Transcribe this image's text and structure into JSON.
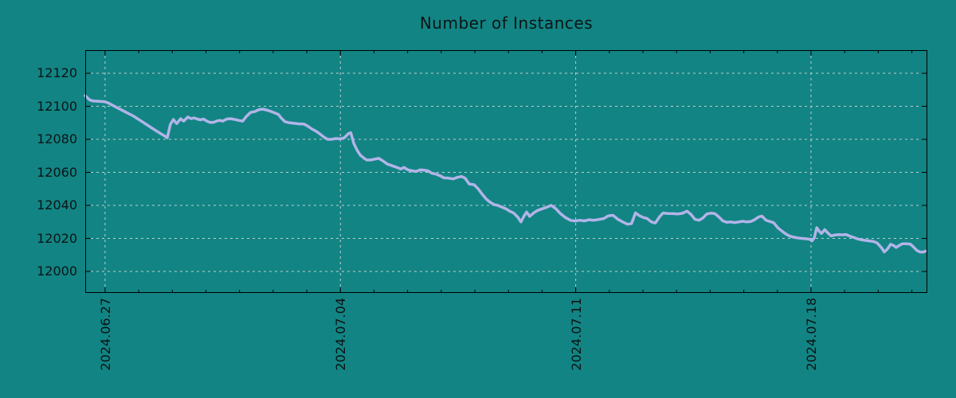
{
  "chart": {
    "background_color": "#128484",
    "line_color": "#b2b4e8",
    "grid_color": "#c2cece",
    "axis_color": "#000000",
    "text_color": "#0b1414"
  },
  "chart_data": {
    "type": "line",
    "title": "Number of Instances",
    "xlabel": "",
    "ylabel": "",
    "x_unit": "days since first sample (~2024.06.26 10:00)",
    "xlim": [
      0,
      25.05
    ],
    "ylim": [
      11987,
      12134
    ],
    "y_ticks": [
      12000,
      12020,
      12040,
      12060,
      12080,
      12100,
      12120
    ],
    "x_ticks_major": [
      {
        "day": 0.59,
        "label": "2024.06.27"
      },
      {
        "day": 7.59,
        "label": "2024.07.04"
      },
      {
        "day": 14.59,
        "label": "2024.07.11"
      },
      {
        "day": 21.59,
        "label": "2024.07.18"
      }
    ],
    "x_minor_ticks": {
      "start_day": 0.59,
      "step_days": 1,
      "count": 25
    },
    "grid": "dotted",
    "legend": "none",
    "series": [
      {
        "name": "Number of Instances",
        "points": [
          [
            0.0,
            12106.5
          ],
          [
            0.07,
            12105
          ],
          [
            0.14,
            12103.8
          ],
          [
            0.24,
            12103.2
          ],
          [
            0.4,
            12103
          ],
          [
            0.57,
            12102.8
          ],
          [
            0.69,
            12102
          ],
          [
            0.87,
            12100
          ],
          [
            1.06,
            12098
          ],
          [
            1.25,
            12096
          ],
          [
            1.44,
            12094
          ],
          [
            1.63,
            12091.5
          ],
          [
            1.82,
            12089
          ],
          [
            2.01,
            12086.5
          ],
          [
            2.2,
            12084
          ],
          [
            2.34,
            12082.3
          ],
          [
            2.44,
            12081
          ],
          [
            2.53,
            12089
          ],
          [
            2.62,
            12092
          ],
          [
            2.72,
            12089.5
          ],
          [
            2.84,
            12092.5
          ],
          [
            2.93,
            12091
          ],
          [
            3.05,
            12093.5
          ],
          [
            3.15,
            12092.5
          ],
          [
            3.24,
            12093
          ],
          [
            3.33,
            12092.3
          ],
          [
            3.43,
            12091.8
          ],
          [
            3.52,
            12092.3
          ],
          [
            3.62,
            12091
          ],
          [
            3.71,
            12090.3
          ],
          [
            3.81,
            12090.3
          ],
          [
            3.9,
            12091
          ],
          [
            4.0,
            12091.5
          ],
          [
            4.09,
            12091
          ],
          [
            4.21,
            12092.3
          ],
          [
            4.33,
            12092.5
          ],
          [
            4.45,
            12092
          ],
          [
            4.56,
            12091.5
          ],
          [
            4.68,
            12091
          ],
          [
            4.8,
            12094
          ],
          [
            4.92,
            12096.3
          ],
          [
            5.04,
            12096.8
          ],
          [
            5.16,
            12097.9
          ],
          [
            5.27,
            12098.3
          ],
          [
            5.39,
            12097.8
          ],
          [
            5.51,
            12097
          ],
          [
            5.63,
            12096
          ],
          [
            5.75,
            12095
          ],
          [
            5.84,
            12092.7
          ],
          [
            5.94,
            12090.7
          ],
          [
            6.08,
            12090
          ],
          [
            6.22,
            12089.7
          ],
          [
            6.36,
            12089.3
          ],
          [
            6.5,
            12089.3
          ],
          [
            6.62,
            12088
          ],
          [
            6.74,
            12086.3
          ],
          [
            6.86,
            12085
          ],
          [
            6.98,
            12083.3
          ],
          [
            7.1,
            12081.3
          ],
          [
            7.21,
            12080
          ],
          [
            7.33,
            12080
          ],
          [
            7.45,
            12080.5
          ],
          [
            7.59,
            12080.3
          ],
          [
            7.71,
            12081
          ],
          [
            7.83,
            12083.5
          ],
          [
            7.9,
            12084
          ],
          [
            7.99,
            12077.5
          ],
          [
            8.09,
            12073.3
          ],
          [
            8.18,
            12070.5
          ],
          [
            8.28,
            12068.8
          ],
          [
            8.37,
            12067.5
          ],
          [
            8.49,
            12067.5
          ],
          [
            8.61,
            12068
          ],
          [
            8.73,
            12068.5
          ],
          [
            8.85,
            12067
          ],
          [
            8.99,
            12065
          ],
          [
            9.13,
            12064
          ],
          [
            9.27,
            12063
          ],
          [
            9.39,
            12062
          ],
          [
            9.48,
            12063
          ],
          [
            9.6,
            12061.5
          ],
          [
            9.72,
            12061
          ],
          [
            9.84,
            12060.5
          ],
          [
            9.96,
            12061.5
          ],
          [
            10.08,
            12061.3
          ],
          [
            10.19,
            12061
          ],
          [
            10.31,
            12059.5
          ],
          [
            10.43,
            12059
          ],
          [
            10.55,
            12058
          ],
          [
            10.67,
            12056.7
          ],
          [
            10.81,
            12056.5
          ],
          [
            10.95,
            12056
          ],
          [
            11.07,
            12057
          ],
          [
            11.19,
            12057.5
          ],
          [
            11.3,
            12056.5
          ],
          [
            11.42,
            12053
          ],
          [
            11.57,
            12052.5
          ],
          [
            11.68,
            12050.3
          ],
          [
            11.8,
            12047
          ],
          [
            11.92,
            12044
          ],
          [
            12.04,
            12042
          ],
          [
            12.16,
            12040.5
          ],
          [
            12.27,
            12040
          ],
          [
            12.39,
            12039
          ],
          [
            12.51,
            12038
          ],
          [
            12.63,
            12036.5
          ],
          [
            12.75,
            12035.3
          ],
          [
            12.87,
            12032.8
          ],
          [
            12.96,
            12030
          ],
          [
            13.05,
            12033.5
          ],
          [
            13.13,
            12036
          ],
          [
            13.22,
            12033.3
          ],
          [
            13.34,
            12035.5
          ],
          [
            13.46,
            12037
          ],
          [
            13.6,
            12038
          ],
          [
            13.74,
            12039
          ],
          [
            13.86,
            12040
          ],
          [
            14.0,
            12038
          ],
          [
            14.14,
            12035
          ],
          [
            14.28,
            12032.7
          ],
          [
            14.43,
            12031
          ],
          [
            14.57,
            12030.5
          ],
          [
            14.71,
            12031
          ],
          [
            14.85,
            12030.6
          ],
          [
            14.99,
            12031.3
          ],
          [
            15.14,
            12031
          ],
          [
            15.28,
            12031.5
          ],
          [
            15.42,
            12032
          ],
          [
            15.56,
            12033.7
          ],
          [
            15.7,
            12034
          ],
          [
            15.85,
            12031.5
          ],
          [
            15.99,
            12030
          ],
          [
            16.13,
            12028.6
          ],
          [
            16.25,
            12029
          ],
          [
            16.37,
            12035.5
          ],
          [
            16.48,
            12033.8
          ],
          [
            16.6,
            12032.7
          ],
          [
            16.72,
            12032
          ],
          [
            16.84,
            12030
          ],
          [
            16.96,
            12029.3
          ],
          [
            17.08,
            12033
          ],
          [
            17.19,
            12035.4
          ],
          [
            17.33,
            12035.1
          ],
          [
            17.48,
            12035
          ],
          [
            17.62,
            12034.8
          ],
          [
            17.76,
            12035.2
          ],
          [
            17.9,
            12036.5
          ],
          [
            18.02,
            12034.5
          ],
          [
            18.14,
            12031.5
          ],
          [
            18.26,
            12031
          ],
          [
            18.38,
            12032.5
          ],
          [
            18.49,
            12034.8
          ],
          [
            18.61,
            12035.3
          ],
          [
            18.73,
            12035
          ],
          [
            18.85,
            12033
          ],
          [
            18.97,
            12030.5
          ],
          [
            19.09,
            12029.8
          ],
          [
            19.2,
            12030
          ],
          [
            19.32,
            12029.6
          ],
          [
            19.44,
            12030
          ],
          [
            19.56,
            12030.4
          ],
          [
            19.68,
            12030
          ],
          [
            19.8,
            12030.3
          ],
          [
            19.91,
            12031.3
          ],
          [
            20.03,
            12033
          ],
          [
            20.13,
            12033.5
          ],
          [
            20.25,
            12031
          ],
          [
            20.36,
            12030.3
          ],
          [
            20.48,
            12029.5
          ],
          [
            20.6,
            12026.5
          ],
          [
            20.72,
            12024.5
          ],
          [
            20.84,
            12022.7
          ],
          [
            20.95,
            12021.5
          ],
          [
            21.07,
            12020.8
          ],
          [
            21.19,
            12020.3
          ],
          [
            21.31,
            12020
          ],
          [
            21.43,
            12019.8
          ],
          [
            21.55,
            12019.5
          ],
          [
            21.62,
            12018.5
          ],
          [
            21.69,
            12020.5
          ],
          [
            21.76,
            12026.5
          ],
          [
            21.83,
            12024.5
          ],
          [
            21.9,
            12023
          ],
          [
            22.0,
            12025.3
          ],
          [
            22.09,
            12023.3
          ],
          [
            22.19,
            12021.5
          ],
          [
            22.28,
            12022
          ],
          [
            22.4,
            12022.3
          ],
          [
            22.52,
            12022.2
          ],
          [
            22.63,
            12022.4
          ],
          [
            22.73,
            12021.5
          ],
          [
            22.85,
            12020.7
          ],
          [
            22.96,
            12019.8
          ],
          [
            23.08,
            12019.2
          ],
          [
            23.2,
            12018.8
          ],
          [
            23.32,
            12018.5
          ],
          [
            23.44,
            12018.2
          ],
          [
            23.56,
            12017.2
          ],
          [
            23.68,
            12014.5
          ],
          [
            23.77,
            12011.8
          ],
          [
            23.86,
            12013.5
          ],
          [
            23.96,
            12016.5
          ],
          [
            24.05,
            12015.7
          ],
          [
            24.12,
            12014.5
          ],
          [
            24.22,
            12015.8
          ],
          [
            24.31,
            12016.8
          ],
          [
            24.43,
            12016.8
          ],
          [
            24.55,
            12016.5
          ],
          [
            24.64,
            12014.8
          ],
          [
            24.74,
            12012.7
          ],
          [
            24.83,
            12011.8
          ],
          [
            24.92,
            12011.7
          ],
          [
            25.0,
            12012.3
          ]
        ]
      }
    ]
  }
}
